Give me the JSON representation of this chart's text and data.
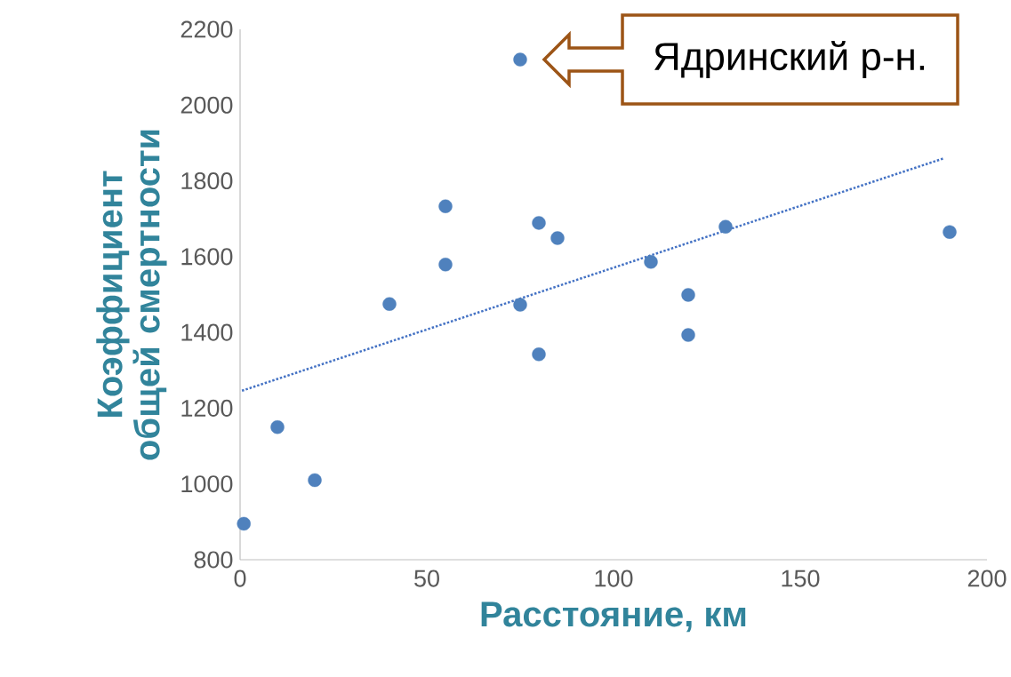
{
  "chart_data": {
    "type": "scatter",
    "xlabel": "Расстояние, км",
    "ylabel": "Коэффициент общей смертности",
    "xlim": [
      0,
      200
    ],
    "xticks": [
      0,
      50,
      100,
      150,
      200
    ],
    "ylim": [
      800,
      2200
    ],
    "yticks": [
      800,
      1000,
      1200,
      1400,
      1600,
      1800,
      2000,
      2200
    ],
    "marker": "circle",
    "series": [
      {
        "color": "#4f81bd",
        "x": [
          1,
          10,
          20,
          40,
          55,
          55,
          75,
          75,
          80,
          80,
          85,
          110,
          120,
          120,
          130,
          190
        ],
        "values": [
          895,
          1150,
          1010,
          1475,
          1733,
          1579,
          2120,
          1473,
          1689,
          1342,
          1649,
          1586,
          1499,
          1393,
          1679,
          1665
        ]
      },
      {
        "type": "line",
        "color": "#4472c4",
        "line_style": "dotted",
        "marker": "none",
        "x": [
          0.5,
          188.6
        ],
        "values": [
          1246,
          1860
        ]
      }
    ],
    "annotations": [
      "Ядринский р-н."
    ]
  }
}
